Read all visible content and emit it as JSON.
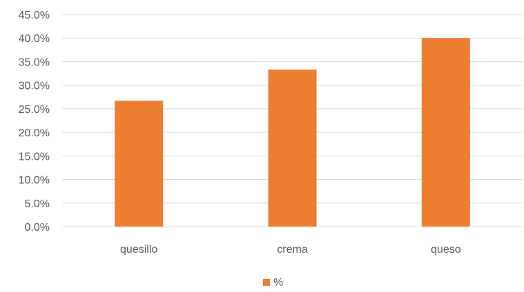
{
  "chart_data": {
    "type": "bar",
    "categories": [
      "quesillo",
      "crema",
      "queso"
    ],
    "series": [
      {
        "name": "%",
        "values": [
          26.7,
          33.3,
          40.0
        ],
        "color": "#ED7D31"
      }
    ],
    "ylim": [
      0,
      45
    ],
    "y_ticks": [
      0,
      5,
      10,
      15,
      20,
      25,
      30,
      35,
      40,
      45
    ],
    "y_tick_format": "percent_one_decimal",
    "y_tick_labels": [
      "0.0%",
      "5.0%",
      "10.0%",
      "15.0%",
      "20.0%",
      "25.0%",
      "30.0%",
      "35.0%",
      "40.0%",
      "45.0%"
    ],
    "grid": true,
    "grid_color": "#D9D9D9",
    "legend": "bottom-center",
    "title": "",
    "xlabel": "",
    "ylabel": ""
  }
}
